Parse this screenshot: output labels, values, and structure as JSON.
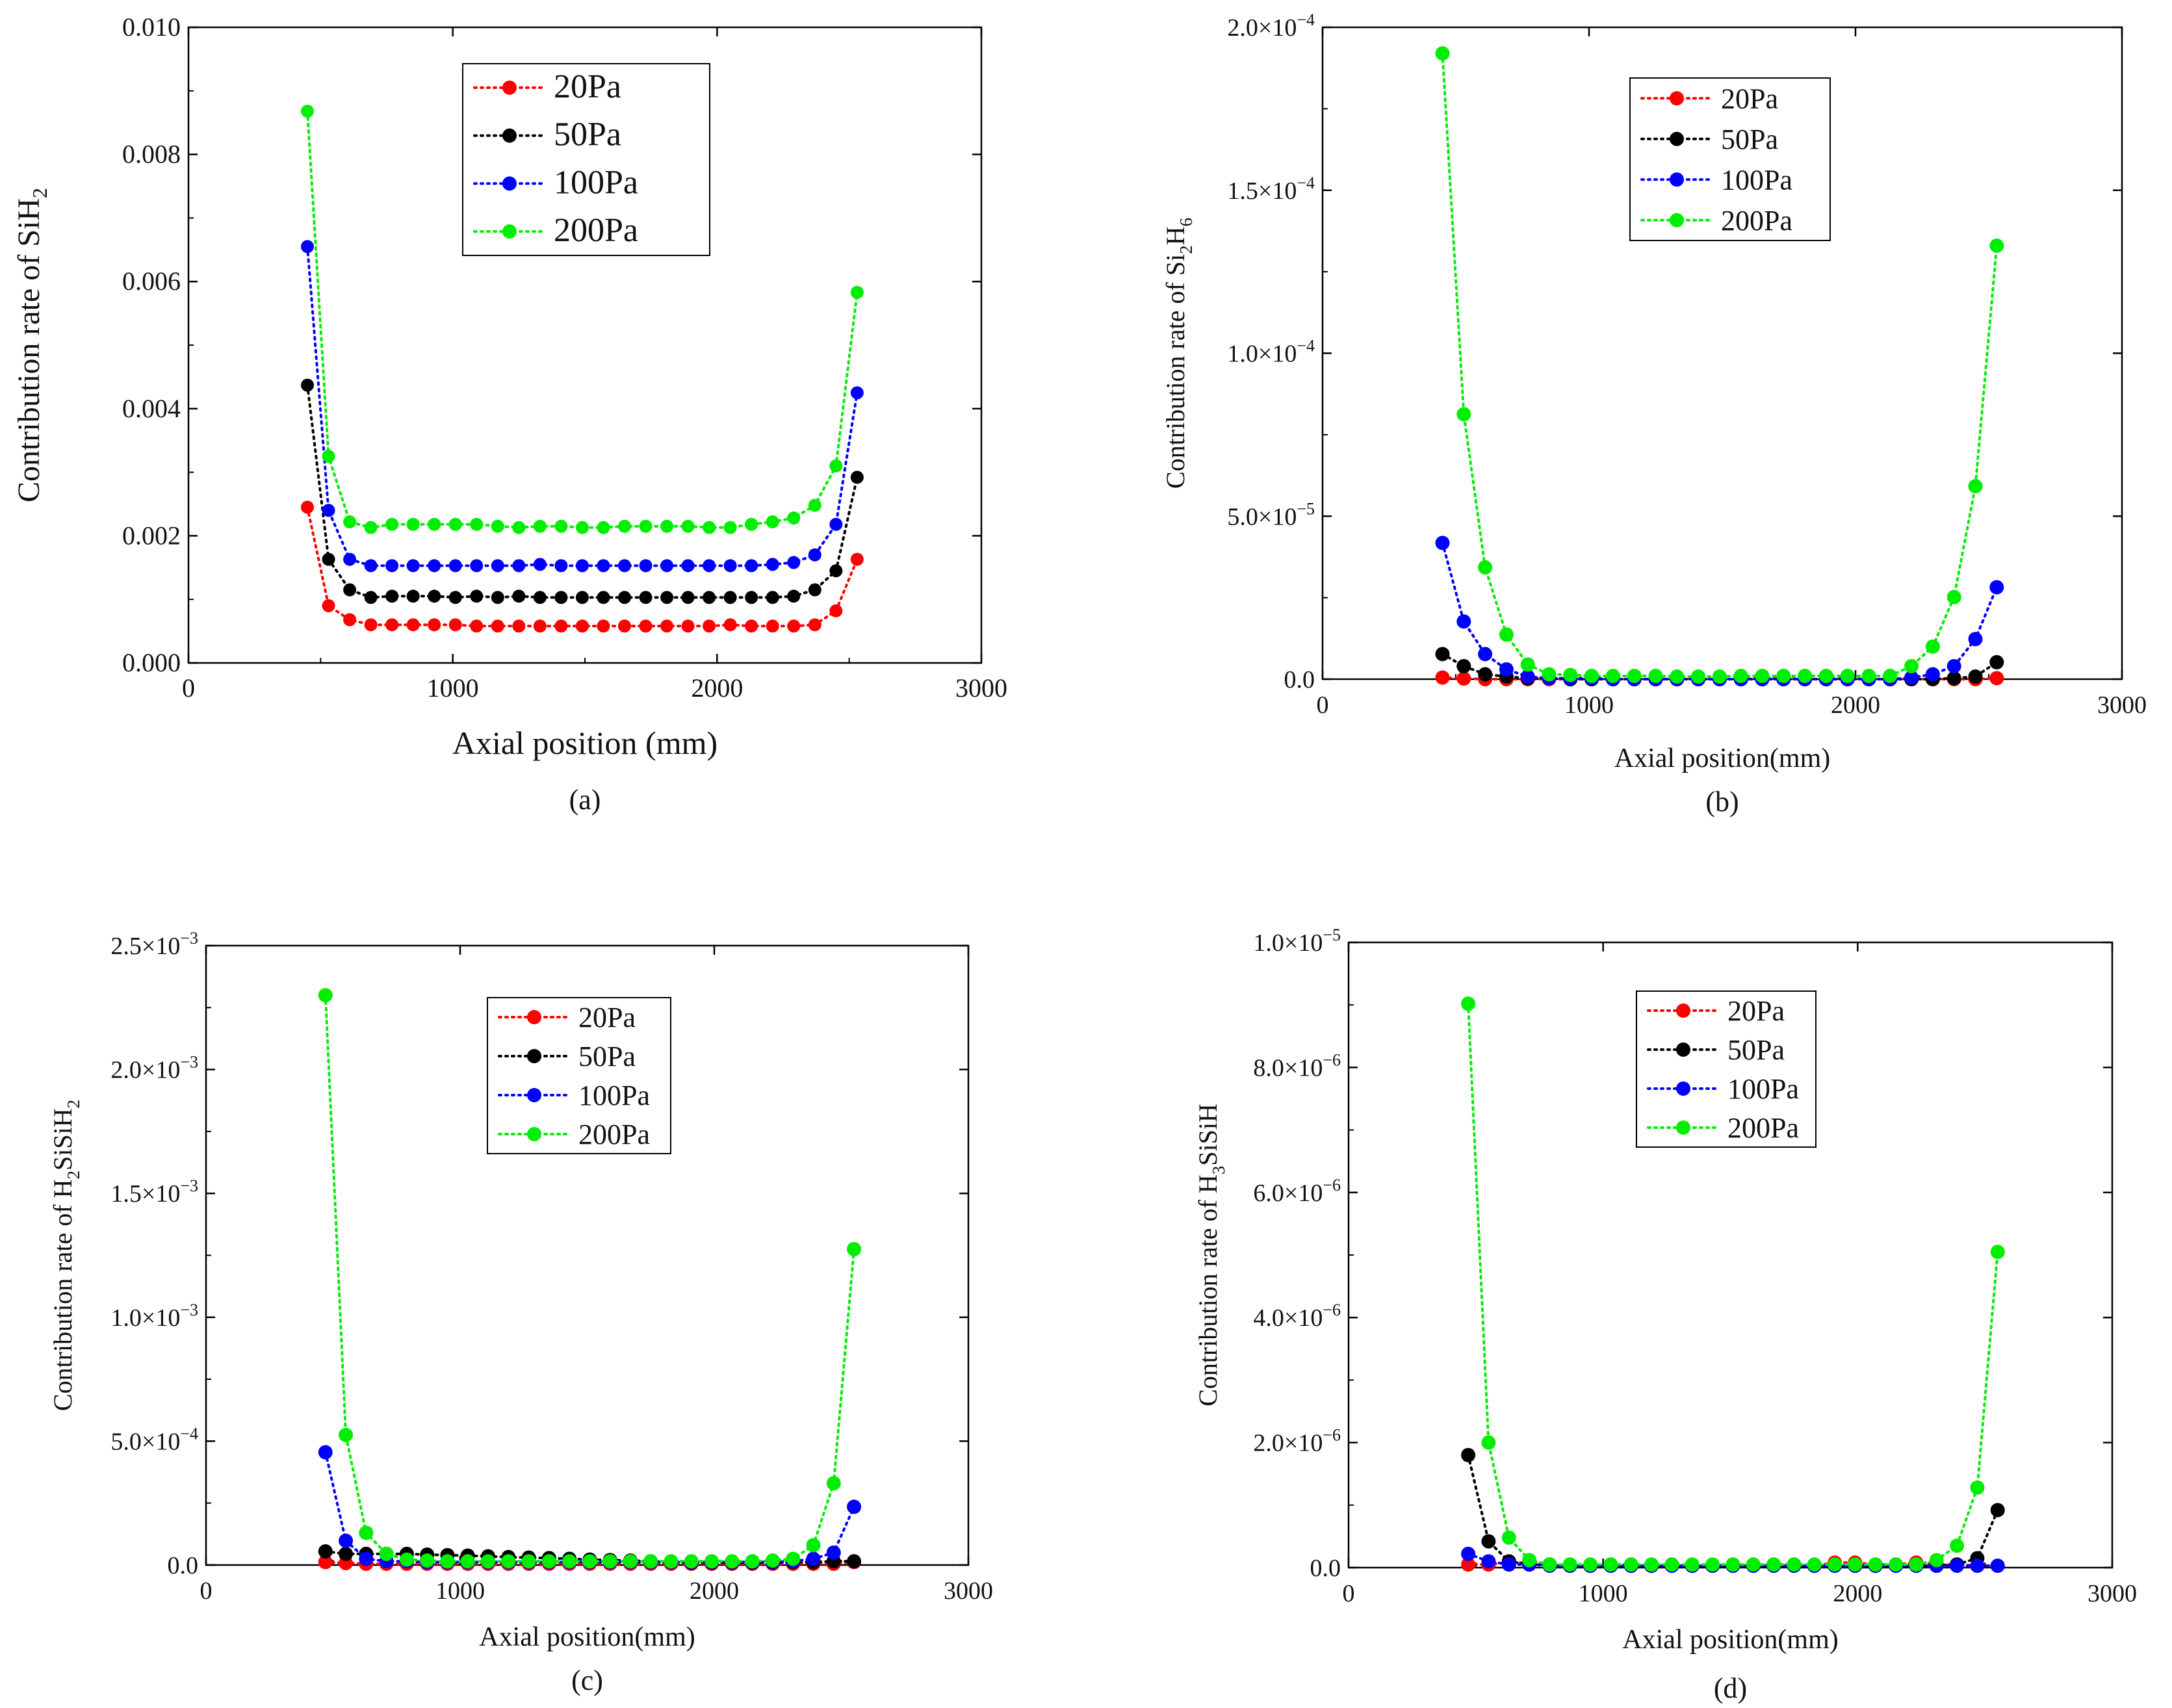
{
  "colors": {
    "20Pa": "#ff0000",
    "50Pa": "#000000",
    "100Pa": "#0000ff",
    "200Pa": "#00ee00"
  },
  "chart_data": [
    {
      "id": "a",
      "type": "line",
      "caption": "(a)",
      "xlabel": "Axial position (mm)",
      "ylabel_parts": [
        "Contribution rate of SiH",
        "2",
        ""
      ],
      "xlim": [
        0,
        3000
      ],
      "ylim": [
        0,
        0.01
      ],
      "xticks": [
        0,
        1000,
        2000,
        3000
      ],
      "xtick_labels": [
        "0",
        "1000",
        "2000",
        "3000"
      ],
      "yticks": [
        0,
        0.002,
        0.004,
        0.006,
        0.008,
        0.01
      ],
      "ytick_labels": [
        "0.000",
        "0.002",
        "0.004",
        "0.006",
        "0.008",
        "0.010"
      ],
      "yexp_labels": null,
      "legend": [
        "20Pa",
        "50Pa",
        "100Pa",
        "200Pa"
      ],
      "x": [
        450,
        530,
        610,
        690,
        770,
        850,
        930,
        1010,
        1090,
        1170,
        1250,
        1330,
        1410,
        1490,
        1570,
        1650,
        1730,
        1810,
        1890,
        1970,
        2050,
        2130,
        2210,
        2290,
        2370,
        2450,
        2530
      ],
      "series": [
        {
          "name": "20Pa",
          "values": [
            0.00245,
            0.0009,
            0.00068,
            0.0006,
            0.0006,
            0.0006,
            0.0006,
            0.0006,
            0.00058,
            0.00058,
            0.00058,
            0.00058,
            0.00058,
            0.00058,
            0.00058,
            0.00058,
            0.00058,
            0.00058,
            0.00058,
            0.00058,
            0.0006,
            0.00058,
            0.00058,
            0.00058,
            0.0006,
            0.00082,
            0.00163
          ]
        },
        {
          "name": "50Pa",
          "values": [
            0.00437,
            0.00163,
            0.00115,
            0.00103,
            0.00105,
            0.00105,
            0.00105,
            0.00103,
            0.00105,
            0.00103,
            0.00105,
            0.00103,
            0.00103,
            0.00103,
            0.00103,
            0.00103,
            0.00103,
            0.00103,
            0.00103,
            0.00103,
            0.00103,
            0.00103,
            0.00103,
            0.00105,
            0.00115,
            0.00145,
            0.00292
          ]
        },
        {
          "name": "100Pa",
          "values": [
            0.00655,
            0.0024,
            0.00163,
            0.00153,
            0.00153,
            0.00153,
            0.00153,
            0.00153,
            0.00153,
            0.00153,
            0.00153,
            0.00155,
            0.00153,
            0.00153,
            0.00153,
            0.00153,
            0.00153,
            0.00153,
            0.00153,
            0.00153,
            0.00153,
            0.00153,
            0.00155,
            0.00158,
            0.0017,
            0.00218,
            0.00425
          ]
        },
        {
          "name": "200Pa",
          "values": [
            0.00868,
            0.00325,
            0.00222,
            0.00213,
            0.00218,
            0.00218,
            0.00218,
            0.00218,
            0.00218,
            0.00215,
            0.00213,
            0.00215,
            0.00215,
            0.00213,
            0.00213,
            0.00215,
            0.00215,
            0.00215,
            0.00215,
            0.00213,
            0.00213,
            0.00218,
            0.00222,
            0.00228,
            0.00248,
            0.0031,
            0.00583
          ]
        }
      ]
    },
    {
      "id": "b",
      "type": "line",
      "caption": "(b)",
      "xlabel": "Axial position(mm)",
      "ylabel_parts": [
        "Contribution rate of Si",
        "2",
        "H",
        "6",
        ""
      ],
      "xlim": [
        0,
        3000
      ],
      "ylim": [
        0,
        0.0002
      ],
      "xticks": [
        0,
        1000,
        2000,
        3000
      ],
      "xtick_labels": [
        "0",
        "1000",
        "2000",
        "3000"
      ],
      "yticks": [
        0,
        5e-05,
        0.0001,
        0.00015,
        0.0002
      ],
      "ytick_labels": [
        "0.0",
        "5.0×10",
        "1.0×10",
        "1.5×10",
        "2.0×10"
      ],
      "yexp_labels": [
        "",
        "−5",
        "−4",
        "−4",
        "−4"
      ],
      "legend": [
        "20Pa",
        "50Pa",
        "100Pa",
        "200Pa"
      ],
      "x": [
        450,
        530,
        610,
        690,
        770,
        850,
        930,
        1010,
        1090,
        1170,
        1250,
        1330,
        1410,
        1490,
        1570,
        1650,
        1730,
        1810,
        1890,
        1970,
        2050,
        2130,
        2210,
        2290,
        2370,
        2450,
        2530
      ],
      "series": [
        {
          "name": "20Pa",
          "values": [
            5e-07,
            2e-07,
            0,
            0,
            0,
            0,
            0,
            0,
            0,
            0,
            0,
            0,
            0,
            0,
            0,
            3e-07,
            3e-07,
            0,
            0,
            3e-07,
            0,
            0,
            0,
            0,
            0,
            0,
            3e-07
          ]
        },
        {
          "name": "50Pa",
          "values": [
            7.7e-06,
            4e-06,
            1.5e-06,
            8e-07,
            3e-07,
            3e-07,
            0,
            0,
            0,
            0,
            0,
            0,
            0,
            0,
            0,
            0,
            0,
            0,
            0,
            0,
            0,
            0,
            0,
            0,
            3e-07,
            8e-07,
            5.2e-06
          ]
        },
        {
          "name": "100Pa",
          "values": [
            4.18e-05,
            1.77e-05,
            7.7e-06,
            3e-06,
            8e-07,
            3e-07,
            3e-07,
            3e-07,
            0,
            0,
            0,
            0,
            0,
            0,
            0,
            0,
            0,
            0,
            0,
            0,
            0,
            0,
            5e-07,
            1.5e-06,
            4e-06,
            1.23e-05,
            2.82e-05
          ]
        },
        {
          "name": "200Pa",
          "values": [
            0.000192,
            8.13e-05,
            3.43e-05,
            1.37e-05,
            4.5e-06,
            1.5e-06,
            1.3e-06,
            1e-06,
            1e-06,
            1e-06,
            1e-06,
            8e-07,
            8e-07,
            8e-07,
            1e-06,
            1e-06,
            1e-06,
            1e-06,
            1e-06,
            1e-06,
            1e-06,
            1e-06,
            4e-06,
            1e-05,
            2.52e-05,
            5.92e-05,
            0.000133
          ]
        }
      ]
    },
    {
      "id": "c",
      "type": "line",
      "caption": "(c)",
      "xlabel": "Axial position(mm)",
      "ylabel_parts": [
        "Contribution rate of H",
        "2",
        "SiSiH",
        "2",
        ""
      ],
      "xlim": [
        0,
        3000
      ],
      "ylim": [
        0,
        0.0025
      ],
      "xticks": [
        0,
        1000,
        2000,
        3000
      ],
      "xtick_labels": [
        "0",
        "1000",
        "2000",
        "3000"
      ],
      "yticks": [
        0,
        0.0005,
        0.001,
        0.0015,
        0.002,
        0.0025
      ],
      "ytick_labels": [
        "0.0",
        "5.0×10",
        "1.0×10",
        "1.5×10",
        "2.0×10",
        "2.5×10"
      ],
      "yexp_labels": [
        "",
        "−4",
        "−3",
        "−3",
        "−3",
        "−3"
      ],
      "legend": [
        "20Pa",
        "50Pa",
        "100Pa",
        "200Pa"
      ],
      "x": [
        470,
        550,
        630,
        710,
        790,
        870,
        950,
        1030,
        1110,
        1190,
        1270,
        1350,
        1430,
        1510,
        1590,
        1670,
        1750,
        1830,
        1910,
        1990,
        2070,
        2150,
        2230,
        2310,
        2390,
        2470,
        2550
      ],
      "series": [
        {
          "name": "20Pa",
          "values": [
            1.2e-05,
            8e-06,
            5e-06,
            5e-06,
            5e-06,
            5e-06,
            5e-06,
            5e-06,
            5e-06,
            5e-06,
            5e-06,
            5e-06,
            5e-06,
            5e-06,
            5e-06,
            5e-06,
            5e-06,
            5e-06,
            5e-06,
            5e-06,
            5e-06,
            5e-06,
            5e-06,
            5e-06,
            5e-06,
            5e-06,
            1.2e-05
          ]
        },
        {
          "name": "50Pa",
          "values": [
            5.5e-05,
            4.5e-05,
            4.5e-05,
            4.5e-05,
            4.5e-05,
            4.2e-05,
            4e-05,
            3.8e-05,
            3.5e-05,
            3.2e-05,
            3e-05,
            2.8e-05,
            2.5e-05,
            2.2e-05,
            2e-05,
            1.8e-05,
            1.5e-05,
            1.2e-05,
            1e-05,
            1e-05,
            1e-05,
            1e-05,
            1e-05,
            1.2e-05,
            1.2e-05,
            1.5e-05,
            1.5e-05
          ]
        },
        {
          "name": "100Pa",
          "values": [
            0.000455,
            9.8e-05,
            2.5e-05,
            1.5e-05,
            1.5e-05,
            1.2e-05,
            1.2e-05,
            1.2e-05,
            1.2e-05,
            1.2e-05,
            1.2e-05,
            1.2e-05,
            1.2e-05,
            1.2e-05,
            1.2e-05,
            1.2e-05,
            1.2e-05,
            1.2e-05,
            1.2e-05,
            1.2e-05,
            1.2e-05,
            1.2e-05,
            1.2e-05,
            1.5e-05,
            2.5e-05,
            5e-05,
            0.000235
          ]
        },
        {
          "name": "200Pa",
          "values": [
            0.0023,
            0.000525,
            0.00013,
            4.5e-05,
            2.2e-05,
            1.8e-05,
            1.5e-05,
            1.5e-05,
            1.5e-05,
            1.5e-05,
            1.5e-05,
            1.5e-05,
            1.5e-05,
            1.5e-05,
            1.5e-05,
            1.5e-05,
            1.5e-05,
            1.5e-05,
            1.5e-05,
            1.5e-05,
            1.5e-05,
            1.5e-05,
            1.8e-05,
            2.5e-05,
            8e-05,
            0.00033,
            0.001275
          ]
        }
      ]
    },
    {
      "id": "d",
      "type": "line",
      "caption": "(d)",
      "xlabel": "Axial position(mm)",
      "ylabel_parts": [
        "Contribution rate of H",
        "3",
        "SiSiH"
      ],
      "xlim": [
        0,
        3000
      ],
      "ylim": [
        0,
        1e-05
      ],
      "xticks": [
        0,
        1000,
        2000,
        3000
      ],
      "xtick_labels": [
        "0",
        "1000",
        "2000",
        "3000"
      ],
      "yticks": [
        0,
        2e-06,
        4e-06,
        6e-06,
        8e-06,
        1e-05
      ],
      "ytick_labels": [
        "0.0",
        "2.0×10",
        "4.0×10",
        "6.0×10",
        "8.0×10",
        "1.0×10"
      ],
      "yexp_labels": [
        "",
        "−6",
        "−6",
        "−6",
        "−6",
        "−5"
      ],
      "legend": [
        "20Pa",
        "50Pa",
        "100Pa",
        "200Pa"
      ],
      "x": [
        470,
        550,
        630,
        710,
        790,
        870,
        950,
        1030,
        1110,
        1190,
        1270,
        1350,
        1430,
        1510,
        1590,
        1670,
        1750,
        1830,
        1910,
        1990,
        2070,
        2150,
        2230,
        2310,
        2390,
        2470,
        2550
      ],
      "series": [
        {
          "name": "20Pa",
          "values": [
            5e-08,
            5e-08,
            8e-08,
            8e-08,
            5e-08,
            3e-08,
            3e-08,
            5e-08,
            5e-08,
            3e-08,
            5e-08,
            3e-08,
            3e-08,
            5e-08,
            3e-08,
            5e-08,
            5e-08,
            3e-08,
            8e-08,
            8e-08,
            5e-08,
            5e-08,
            8e-08,
            5e-08,
            5e-08,
            3e-08,
            3e-08
          ]
        },
        {
          "name": "50Pa",
          "values": [
            1.8e-06,
            4.2e-07,
            1e-07,
            5e-08,
            5e-08,
            3e-08,
            3e-08,
            3e-08,
            3e-08,
            3e-08,
            3e-08,
            3e-08,
            3e-08,
            3e-08,
            3e-08,
            3e-08,
            3e-08,
            3e-08,
            3e-08,
            3e-08,
            3e-08,
            3e-08,
            3e-08,
            3e-08,
            5e-08,
            1.5e-07,
            9.2e-07
          ]
        },
        {
          "name": "100Pa",
          "values": [
            2.2e-07,
            1e-07,
            5e-08,
            5e-08,
            3e-08,
            3e-08,
            3e-08,
            3e-08,
            3e-08,
            3e-08,
            3e-08,
            3e-08,
            3e-08,
            3e-08,
            3e-08,
            3e-08,
            3e-08,
            3e-08,
            3e-08,
            3e-08,
            3e-08,
            3e-08,
            3e-08,
            3e-08,
            3e-08,
            3e-08,
            3e-08
          ]
        },
        {
          "name": "200Pa",
          "values": [
            9.02e-06,
            2e-06,
            4.8e-07,
            1.2e-07,
            5e-08,
            5e-08,
            5e-08,
            5e-08,
            5e-08,
            5e-08,
            5e-08,
            5e-08,
            5e-08,
            5e-08,
            5e-08,
            5e-08,
            5e-08,
            5e-08,
            5e-08,
            5e-08,
            5e-08,
            5e-08,
            5e-08,
            1.2e-07,
            3.5e-07,
            1.28e-06,
            5.05e-06
          ]
        }
      ]
    }
  ]
}
